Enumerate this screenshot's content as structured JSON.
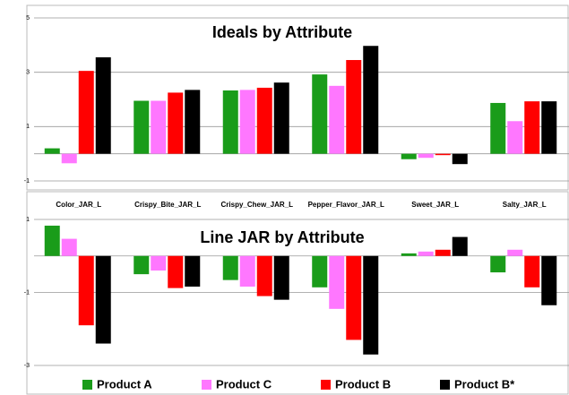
{
  "chart_data": [
    {
      "type": "bar",
      "title": "Ideals by Attribute",
      "categories": [
        "Color_JAR_L",
        "Crispy_Bite_JAR_L",
        "Crispy_Chew_JAR_L",
        "Pepper_Flavor_JAR_L",
        "Sweet_JAR_L",
        "Salty_JAR_L"
      ],
      "series": [
        {
          "name": "Product A",
          "color": "#1a9c1a",
          "values": [
            0.2,
            1.95,
            2.33,
            2.92,
            -0.2,
            1.87
          ]
        },
        {
          "name": "Product C",
          "color": "#ff77ff",
          "values": [
            -0.35,
            1.95,
            2.35,
            2.5,
            -0.15,
            1.2
          ]
        },
        {
          "name": "Product B",
          "color": "#ff0000",
          "values": [
            3.05,
            2.25,
            2.43,
            3.45,
            -0.05,
            1.93
          ]
        },
        {
          "name": "Product B*",
          "color": "#000000",
          "values": [
            3.55,
            2.35,
            2.62,
            3.97,
            -0.38,
            1.93
          ]
        }
      ],
      "ylim": [
        -1,
        5
      ],
      "yticks": [
        -1,
        1,
        3,
        5
      ],
      "grid": true
    },
    {
      "type": "bar",
      "title": "Line JAR by Attribute",
      "categories": [
        null,
        null,
        null,
        null,
        null,
        null
      ],
      "series": [
        {
          "name": "Product A",
          "color": "#1a9c1a",
          "values": [
            0.83,
            -0.5,
            -0.66,
            -0.86,
            0.07,
            -0.45
          ]
        },
        {
          "name": "Product C",
          "color": "#ff77ff",
          "values": [
            0.47,
            -0.4,
            -0.84,
            -1.45,
            0.12,
            0.17
          ]
        },
        {
          "name": "Product B",
          "color": "#ff0000",
          "values": [
            -1.9,
            -0.88,
            -1.1,
            -2.3,
            0.17,
            -0.86
          ]
        },
        {
          "name": "Product B*",
          "color": "#000000",
          "values": [
            -2.4,
            -0.84,
            -1.2,
            -2.7,
            0.52,
            -1.35
          ]
        }
      ],
      "ylim": [
        -3,
        1
      ],
      "yticks": [
        -3,
        -1,
        1
      ],
      "grid": true,
      "legend": "bottom"
    }
  ]
}
